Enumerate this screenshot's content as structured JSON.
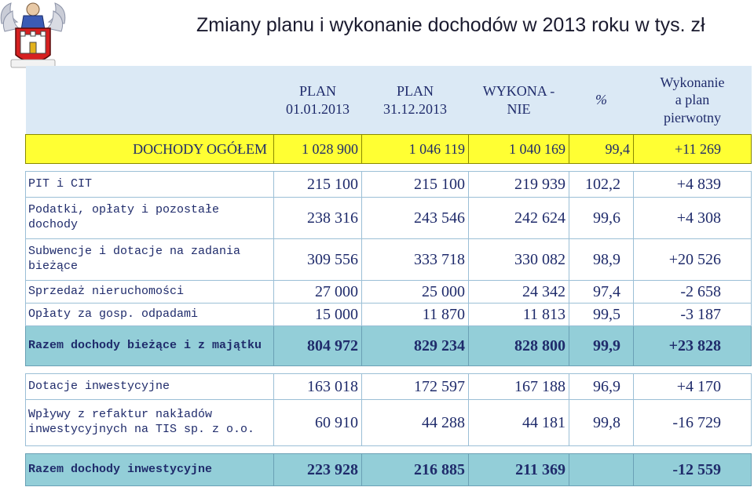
{
  "title": "Zmiany planu i wykonanie dochodów w 2013 roku w tys. zł",
  "logo": "torun-coat-of-arms-icon",
  "columns": [
    "PLAN\n01.01.2013",
    "PLAN\n31.12.2013",
    "WYKONA -\nNIE",
    "%",
    "Wykonanie\na plan\npierwotny"
  ],
  "total": {
    "label": "DOCHODY OGÓŁEM",
    "plan1": "1 028 900",
    "plan2": "1 046 119",
    "exec": "1 040 169",
    "pct": "99,4",
    "chg": "+11 269"
  },
  "rows": [
    {
      "label": "PIT i CIT",
      "plan1": "215 100",
      "plan2": "215 100",
      "exec": "219 939",
      "pct": "102,2",
      "chg": "+4 839"
    },
    {
      "label": "Podatki, opłaty i pozostałe dochody",
      "plan1": "238 316",
      "plan2": "243 546",
      "exec": "242 624",
      "pct": "99,6",
      "chg": "+4 308"
    },
    {
      "label": "Subwencje i dotacje na zadania bieżące",
      "plan1": "309 556",
      "plan2": "333 718",
      "exec": "330 082",
      "pct": "98,9",
      "chg": "+20 526"
    },
    {
      "label": "Sprzedaż nieruchomości",
      "plan1": "27 000",
      "plan2": "25 000",
      "exec": "24 342",
      "pct": "97,4",
      "chg": "-2 658"
    },
    {
      "label": "Opłaty za gosp. odpadami",
      "plan1": "15 000",
      "plan2": "11 870",
      "exec": "11 813",
      "pct": "99,5",
      "chg": "-3 187"
    },
    {
      "label": "Razem dochody bieżące i z majątku",
      "plan1": "804 972",
      "plan2": "829 234",
      "exec": "828 800",
      "pct": "99,9",
      "chg": "+23 828"
    },
    {
      "label": "Dotacje inwestycyjne",
      "plan1": "163 018",
      "plan2": "172 597",
      "exec": "167 188",
      "pct": "96,9",
      "chg": "+4 170"
    },
    {
      "label": "Wpływy z refaktur nakładów inwestycyjnych na TIS sp. z o.o.",
      "plan1": "60 910",
      "plan2": "44 288",
      "exec": "44 181",
      "pct": "99,8",
      "chg": "-16 729"
    },
    {
      "label": "Razem dochody inwestycyjne",
      "plan1": "223 928",
      "plan2": "216 885",
      "exec": "211 369",
      "pct": "",
      "chg": "-12 559"
    }
  ]
}
